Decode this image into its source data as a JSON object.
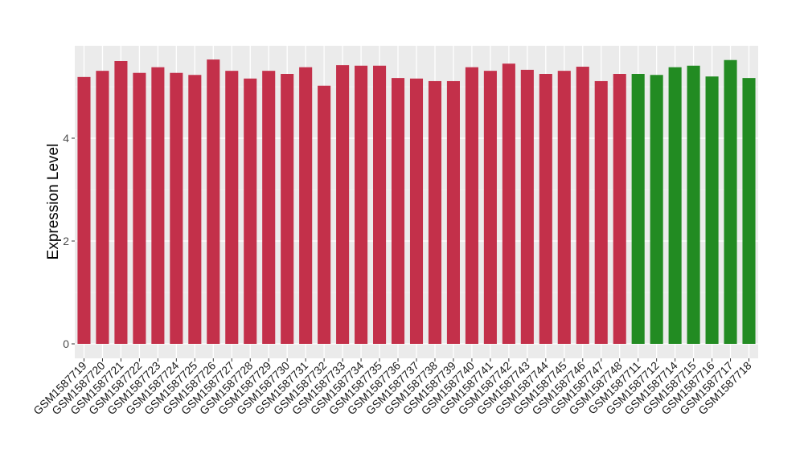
{
  "chart_data": {
    "type": "bar",
    "title": "",
    "xlabel": "",
    "ylabel": "Expression Level",
    "ylim": [
      0,
      5.7
    ],
    "yticks": [
      0,
      2,
      4
    ],
    "grid": true,
    "legend": "none",
    "colors": {
      "group1": "#C3304A",
      "group2": "#228B22",
      "panel": "#EBEBEB",
      "grid": "#FFFFFF"
    },
    "categories": [
      "GSM1587719",
      "GSM1587720",
      "GSM1587721",
      "GSM1587722",
      "GSM1587723",
      "GSM1587724",
      "GSM1587725",
      "GSM1587726",
      "GSM1587727",
      "GSM1587728",
      "GSM1587729",
      "GSM1587730",
      "GSM1587731",
      "GSM1587732",
      "GSM1587733",
      "GSM1587734",
      "GSM1587735",
      "GSM1587736",
      "GSM1587737",
      "GSM1587738",
      "GSM1587739",
      "GSM1587740",
      "GSM1587741",
      "GSM1587742",
      "GSM1587743",
      "GSM1587744",
      "GSM1587745",
      "GSM1587746",
      "GSM1587747",
      "GSM1587748",
      "GSM1587711",
      "GSM1587712",
      "GSM1587714",
      "GSM1587715",
      "GSM1587716",
      "GSM1587717",
      "GSM1587718"
    ],
    "values": [
      5.19,
      5.31,
      5.5,
      5.27,
      5.38,
      5.27,
      5.23,
      5.53,
      5.31,
      5.16,
      5.31,
      5.25,
      5.38,
      5.02,
      5.42,
      5.41,
      5.41,
      5.17,
      5.16,
      5.11,
      5.11,
      5.38,
      5.31,
      5.45,
      5.33,
      5.25,
      5.31,
      5.39,
      5.11,
      5.25,
      5.25,
      5.23,
      5.38,
      5.41,
      5.2,
      5.52,
      5.17
    ],
    "groups": [
      "group1",
      "group1",
      "group1",
      "group1",
      "group1",
      "group1",
      "group1",
      "group1",
      "group1",
      "group1",
      "group1",
      "group1",
      "group1",
      "group1",
      "group1",
      "group1",
      "group1",
      "group1",
      "group1",
      "group1",
      "group1",
      "group1",
      "group1",
      "group1",
      "group1",
      "group1",
      "group1",
      "group1",
      "group1",
      "group1",
      "group2",
      "group2",
      "group2",
      "group2",
      "group2",
      "group2",
      "group2"
    ]
  }
}
